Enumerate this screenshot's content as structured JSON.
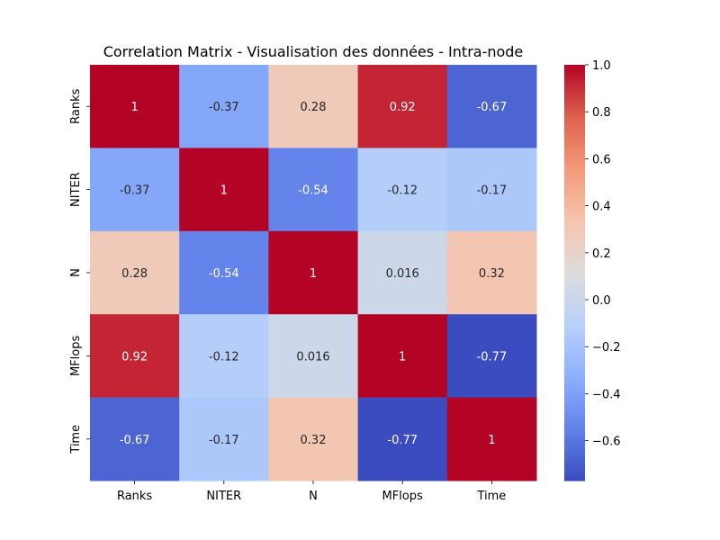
{
  "chart_data": {
    "type": "heatmap",
    "title": "Correlation Matrix - Visualisation des données - Intra-node",
    "x_categories": [
      "Ranks",
      "NITER",
      "N",
      "MFlops",
      "Time"
    ],
    "y_categories": [
      "Ranks",
      "NITER",
      "N",
      "MFlops",
      "Time"
    ],
    "values": [
      [
        1,
        -0.37,
        0.28,
        0.92,
        -0.67
      ],
      [
        -0.37,
        1,
        -0.54,
        -0.12,
        -0.17
      ],
      [
        0.28,
        -0.54,
        1,
        0.016,
        0.32
      ],
      [
        0.92,
        -0.12,
        0.016,
        1,
        -0.77
      ],
      [
        -0.67,
        -0.17,
        0.32,
        -0.77,
        1
      ]
    ],
    "value_labels": [
      [
        "1",
        "-0.37",
        "0.28",
        "0.92",
        "-0.67"
      ],
      [
        "-0.37",
        "1",
        "-0.54",
        "-0.12",
        "-0.17"
      ],
      [
        "0.28",
        "-0.54",
        "1",
        "0.016",
        "0.32"
      ],
      [
        "0.92",
        "-0.12",
        "0.016",
        "1",
        "-0.77"
      ],
      [
        "-0.67",
        "-0.17",
        "0.32",
        "-0.77",
        "1"
      ]
    ],
    "colormap": "coolwarm",
    "colorbar": {
      "range": [
        -0.77,
        1.0
      ],
      "ticks": [
        1.0,
        0.8,
        0.6,
        0.4,
        0.2,
        0.0,
        -0.2,
        -0.4,
        -0.6
      ],
      "tick_labels": [
        "1.0",
        "0.8",
        "0.6",
        "0.4",
        "0.2",
        "0.0",
        "−0.2",
        "−0.4",
        "−0.6"
      ]
    },
    "grid": false,
    "legend": "colorbar-right"
  }
}
